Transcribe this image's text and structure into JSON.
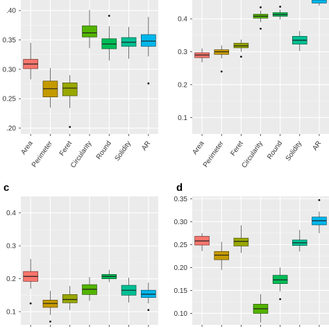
{
  "chart_data": [
    {
      "type": "box",
      "panel_label": "",
      "categories": [
        "Area",
        "Perimeter",
        "Feret",
        "Circularity",
        "Round",
        "Solidity",
        "AR"
      ],
      "ylim": [
        0.19,
        0.425
      ],
      "yticks": [
        0.2,
        0.25,
        0.3,
        0.35,
        0.4
      ],
      "ytick_labels": [
        ".20",
        "0.25",
        "0.30",
        "0.35",
        ".40"
      ],
      "grid": true,
      "show_x_labels": true,
      "boxes": [
        {
          "category": "Area",
          "color": "#f8766d",
          "whisker_low": 0.283,
          "q1": 0.301,
          "median": 0.309,
          "q3": 0.317,
          "whisker_high": 0.345,
          "outliers": []
        },
        {
          "category": "Perimeter",
          "color": "#c49a00",
          "whisker_low": 0.235,
          "q1": 0.253,
          "median": 0.267,
          "q3": 0.28,
          "whisker_high": 0.302,
          "outliers": []
        },
        {
          "category": "Feret",
          "color": "#99a800",
          "whisker_low": 0.234,
          "q1": 0.255,
          "median": 0.268,
          "q3": 0.277,
          "whisker_high": 0.29,
          "outliers": [
            0.202
          ]
        },
        {
          "category": "Circularity",
          "color": "#53b400",
          "whisker_low": 0.336,
          "q1": 0.355,
          "median": 0.362,
          "q3": 0.374,
          "whisker_high": 0.401,
          "outliers": []
        },
        {
          "category": "Round",
          "color": "#00bc56",
          "whisker_low": 0.315,
          "q1": 0.335,
          "median": 0.343,
          "q3": 0.352,
          "whisker_high": 0.373,
          "outliers": [
            0.391
          ]
        },
        {
          "category": "Solidity",
          "color": "#00c094",
          "whisker_low": 0.318,
          "q1": 0.339,
          "median": 0.346,
          "q3": 0.354,
          "whisker_high": 0.372,
          "outliers": []
        },
        {
          "category": "AR",
          "color": "#00b6eb",
          "whisker_low": 0.322,
          "q1": 0.339,
          "median": 0.348,
          "q3": 0.359,
          "whisker_high": 0.389,
          "outliers": [
            0.276
          ]
        }
      ]
    },
    {
      "type": "box",
      "panel_label": "",
      "categories": [
        "Area",
        "Perimeter",
        "Feret",
        "Circularity",
        "Round",
        "Solidity",
        "AR"
      ],
      "ylim": [
        0.05,
        0.47
      ],
      "yticks": [
        0.1,
        0.2,
        0.3,
        0.4
      ],
      "ytick_labels": [
        "0.1",
        "0.2",
        "0.3",
        "0.4"
      ],
      "grid": true,
      "show_x_labels": true,
      "boxes": [
        {
          "category": "Area",
          "color": "#f8766d",
          "whisker_low": 0.268,
          "q1": 0.282,
          "median": 0.29,
          "q3": 0.297,
          "whisker_high": 0.31,
          "outliers": []
        },
        {
          "category": "Perimeter",
          "color": "#c49a00",
          "whisker_low": 0.28,
          "q1": 0.292,
          "median": 0.3,
          "q3": 0.306,
          "whisker_high": 0.319,
          "outliers": [
            0.24
          ]
        },
        {
          "category": "Feret",
          "color": "#99a800",
          "whisker_low": 0.3,
          "q1": 0.312,
          "median": 0.318,
          "q3": 0.326,
          "whisker_high": 0.337,
          "outliers": [
            0.285
          ]
        },
        {
          "category": "Circularity",
          "color": "#53b400",
          "whisker_low": 0.39,
          "q1": 0.402,
          "median": 0.408,
          "q3": 0.414,
          "whisker_high": 0.425,
          "outliers": [
            0.37,
            0.435
          ]
        },
        {
          "category": "Round",
          "color": "#00bc56",
          "whisker_low": 0.398,
          "q1": 0.408,
          "median": 0.413,
          "q3": 0.419,
          "whisker_high": 0.428,
          "outliers": [
            0.437
          ]
        },
        {
          "category": "Solidity",
          "color": "#00c094",
          "whisker_low": 0.302,
          "q1": 0.323,
          "median": 0.335,
          "q3": 0.347,
          "whisker_high": 0.363,
          "outliers": []
        },
        {
          "category": "AR",
          "color": "#00b6eb",
          "whisker_low": 0.44,
          "q1": 0.448,
          "median": 0.458,
          "q3": 0.47,
          "whisker_high": 0.47,
          "outliers": []
        }
      ]
    },
    {
      "type": "box",
      "panel_label": "c",
      "categories": [
        "Area",
        "Perimeter",
        "Feret",
        "Circularity",
        "Round",
        "Solidity",
        "AR"
      ],
      "ylim": [
        0.06,
        0.45
      ],
      "yticks": [
        0.1,
        0.2,
        0.3,
        0.4
      ],
      "ytick_labels": [
        "0.1",
        "0.2",
        "0.3",
        "0.4"
      ],
      "grid": true,
      "show_x_labels": false,
      "boxes": [
        {
          "category": "Area",
          "color": "#f8766d",
          "whisker_low": 0.17,
          "q1": 0.192,
          "median": 0.207,
          "q3": 0.222,
          "whisker_high": 0.26,
          "outliers": [
            0.125
          ]
        },
        {
          "category": "Perimeter",
          "color": "#c49a00",
          "whisker_low": 0.09,
          "q1": 0.113,
          "median": 0.125,
          "q3": 0.135,
          "whisker_high": 0.163,
          "outliers": [
            0.07
          ]
        },
        {
          "category": "Feret",
          "color": "#99a800",
          "whisker_low": 0.105,
          "q1": 0.127,
          "median": 0.137,
          "q3": 0.152,
          "whisker_high": 0.178,
          "outliers": []
        },
        {
          "category": "Circularity",
          "color": "#53b400",
          "whisker_low": 0.133,
          "q1": 0.152,
          "median": 0.168,
          "q3": 0.182,
          "whisker_high": 0.205,
          "outliers": []
        },
        {
          "category": "Round",
          "color": "#00bc56",
          "whisker_low": 0.19,
          "q1": 0.2,
          "median": 0.207,
          "q3": 0.213,
          "whisker_high": 0.227,
          "outliers": []
        },
        {
          "category": "Solidity",
          "color": "#00c094",
          "whisker_low": 0.128,
          "q1": 0.15,
          "median": 0.165,
          "q3": 0.18,
          "whisker_high": 0.203,
          "outliers": []
        },
        {
          "category": "AR",
          "color": "#00b6eb",
          "whisker_low": 0.125,
          "q1": 0.143,
          "median": 0.153,
          "q3": 0.165,
          "whisker_high": 0.188,
          "outliers": [
            0.105
          ]
        }
      ]
    },
    {
      "type": "box",
      "panel_label": "d",
      "categories": [
        "Area",
        "Perimeter",
        "Feret",
        "Circularity",
        "Round",
        "Solidity",
        "AR"
      ],
      "ylim": [
        0.075,
        0.355
      ],
      "yticks": [
        0.1,
        0.15,
        0.2,
        0.25,
        0.3,
        0.35
      ],
      "ytick_labels": [
        "0.10",
        "0.15",
        "0.20",
        "0.25",
        "0.30",
        "0.35"
      ],
      "grid": true,
      "show_x_labels": false,
      "boxes": [
        {
          "category": "Area",
          "color": "#f8766d",
          "whisker_low": 0.236,
          "q1": 0.249,
          "median": 0.258,
          "q3": 0.268,
          "whisker_high": 0.275,
          "outliers": []
        },
        {
          "category": "Perimeter",
          "color": "#c49a00",
          "whisker_low": 0.195,
          "q1": 0.217,
          "median": 0.227,
          "q3": 0.235,
          "whisker_high": 0.256,
          "outliers": []
        },
        {
          "category": "Feret",
          "color": "#99a800",
          "whisker_low": 0.232,
          "q1": 0.247,
          "median": 0.257,
          "q3": 0.264,
          "whisker_high": 0.292,
          "outliers": []
        },
        {
          "category": "Circularity",
          "color": "#53b400",
          "whisker_low": 0.08,
          "q1": 0.1,
          "median": 0.11,
          "q3": 0.12,
          "whisker_high": 0.142,
          "outliers": []
        },
        {
          "category": "Round",
          "color": "#00bc56",
          "whisker_low": 0.148,
          "q1": 0.165,
          "median": 0.173,
          "q3": 0.183,
          "whisker_high": 0.2,
          "outliers": [
            0.131
          ]
        },
        {
          "category": "Solidity",
          "color": "#00c094",
          "whisker_low": 0.235,
          "q1": 0.248,
          "median": 0.254,
          "q3": 0.26,
          "whisker_high": 0.282,
          "outliers": []
        },
        {
          "category": "AR",
          "color": "#00b6eb",
          "whisker_low": 0.275,
          "q1": 0.293,
          "median": 0.302,
          "q3": 0.31,
          "whisker_high": 0.322,
          "outliers": [
            0.347
          ]
        }
      ]
    }
  ]
}
